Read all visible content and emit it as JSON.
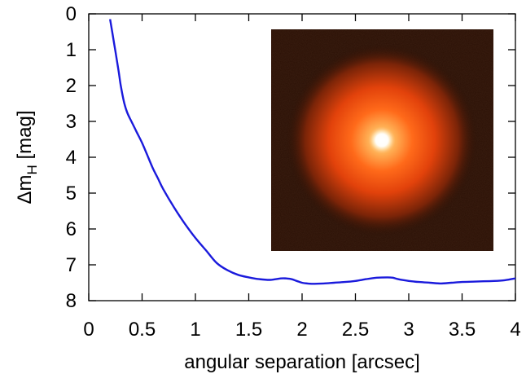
{
  "chart_data": {
    "type": "line",
    "title": "",
    "xlabel": "angular separation [arcsec]",
    "ylabel": {
      "prefix": "Δm",
      "subscript": "H",
      "suffix": " [mag]"
    },
    "xlim": [
      0,
      4
    ],
    "ylim": [
      8,
      0
    ],
    "y_inverted": true,
    "grid": false,
    "legend": "none",
    "x_ticks": [
      {
        "value": 0,
        "label": "0"
      },
      {
        "value": 0.5,
        "label": "0.5"
      },
      {
        "value": 1,
        "label": "1"
      },
      {
        "value": 1.5,
        "label": "1.5"
      },
      {
        "value": 2,
        "label": "2"
      },
      {
        "value": 2.5,
        "label": "2.5"
      },
      {
        "value": 3,
        "label": "3"
      },
      {
        "value": 3.5,
        "label": "3.5"
      },
      {
        "value": 4,
        "label": "4"
      }
    ],
    "y_ticks": [
      {
        "value": 0,
        "label": "0"
      },
      {
        "value": 1,
        "label": "1"
      },
      {
        "value": 2,
        "label": "2"
      },
      {
        "value": 3,
        "label": "3"
      },
      {
        "value": 4,
        "label": "4"
      },
      {
        "value": 5,
        "label": "5"
      },
      {
        "value": 6,
        "label": "6"
      },
      {
        "value": 7,
        "label": "7"
      },
      {
        "value": 8,
        "label": "8"
      }
    ],
    "series": [
      {
        "color": "#1a1adc",
        "x": [
          0.2,
          0.22,
          0.25,
          0.28,
          0.3,
          0.33,
          0.36,
          0.4,
          0.45,
          0.5,
          0.55,
          0.6,
          0.65,
          0.7,
          0.8,
          0.9,
          1.0,
          1.1,
          1.2,
          1.3,
          1.4,
          1.5,
          1.6,
          1.7,
          1.8,
          1.85,
          1.9,
          1.95,
          2.0,
          2.05,
          2.1,
          2.2,
          2.3,
          2.4,
          2.5,
          2.6,
          2.7,
          2.8,
          2.85,
          2.9,
          3.0,
          3.1,
          3.2,
          3.3,
          3.4,
          3.5,
          3.6,
          3.7,
          3.8,
          3.9,
          4.0
        ],
        "y": [
          0.15,
          0.5,
          1.05,
          1.6,
          2.0,
          2.45,
          2.75,
          3.0,
          3.3,
          3.6,
          3.95,
          4.3,
          4.6,
          4.9,
          5.4,
          5.85,
          6.25,
          6.6,
          6.95,
          7.15,
          7.28,
          7.35,
          7.4,
          7.42,
          7.38,
          7.38,
          7.4,
          7.45,
          7.5,
          7.52,
          7.53,
          7.52,
          7.5,
          7.48,
          7.45,
          7.4,
          7.36,
          7.35,
          7.36,
          7.4,
          7.45,
          7.48,
          7.5,
          7.52,
          7.5,
          7.48,
          7.47,
          7.46,
          7.45,
          7.43,
          7.38
        ]
      }
    ]
  },
  "inset_image": {
    "background": "#2a1005",
    "halo_color": "#ff5a10",
    "core_color": "#ffffff"
  }
}
